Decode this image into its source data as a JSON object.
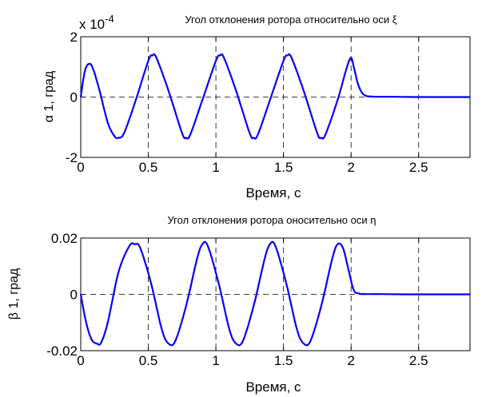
{
  "colors": {
    "series": "#0000ff",
    "axes": "#000000",
    "background": "#ffffff"
  },
  "chart_data": [
    {
      "type": "line",
      "title": "Угол отклонения ротора относительно оси ξ",
      "xlabel": "Время, с",
      "ylabel": "α 1, град",
      "exponent_label": "x 10",
      "exponent_power": "-4",
      "xlim": [
        0,
        2.88
      ],
      "ylim": [
        -2,
        2
      ],
      "xticks": [
        0,
        0.5,
        1,
        1.5,
        2,
        2.5
      ],
      "xtick_labels": [
        "0",
        "0.5",
        "1",
        "1.5",
        "2",
        "2.5"
      ],
      "yticks": [
        -2,
        0,
        2
      ],
      "ytick_labels": [
        "-2",
        "0",
        "2"
      ],
      "grid": true,
      "series": [
        {
          "x": [
            0,
            0.03,
            0.06,
            0.09,
            0.14,
            0.2,
            0.25,
            0.28,
            0.32,
            0.4,
            0.5,
            0.53,
            0.56,
            0.65,
            0.75,
            0.78,
            0.81,
            0.9,
            1.0,
            1.03,
            1.06,
            1.15,
            1.25,
            1.28,
            1.31,
            1.4,
            1.5,
            1.53,
            1.56,
            1.65,
            1.75,
            1.78,
            1.81,
            1.9,
            1.97,
            2.0,
            2.02,
            2.05,
            2.08,
            2.11,
            2.14,
            2.2,
            2.3,
            2.5,
            2.7,
            2.88
          ],
          "y": [
            0,
            0.85,
            1.1,
            0.95,
            0.2,
            -0.85,
            -1.3,
            -1.35,
            -1.2,
            -0.2,
            1.2,
            1.38,
            1.3,
            0.2,
            -1.2,
            -1.35,
            -1.25,
            -0.1,
            1.2,
            1.38,
            1.3,
            0.2,
            -1.2,
            -1.35,
            -1.25,
            -0.1,
            1.2,
            1.38,
            1.3,
            0.2,
            -1.2,
            -1.35,
            -1.25,
            -0.1,
            1.0,
            1.3,
            1.0,
            0.45,
            0.15,
            0.04,
            0.02,
            0.01,
            0.01,
            0.0,
            0.0,
            0.0
          ]
        }
      ]
    },
    {
      "type": "line",
      "title": "Угол отклонения ротора оносительно оси η",
      "xlabel": "Время, с",
      "ylabel": "β 1, град",
      "xlim": [
        0,
        2.88
      ],
      "ylim": [
        -0.02,
        0.02
      ],
      "xticks": [
        0,
        0.5,
        1,
        1.5,
        2,
        2.5
      ],
      "xtick_labels": [
        "0",
        "0.5",
        "1",
        "1.5",
        "2",
        "2.5"
      ],
      "yticks": [
        -0.02,
        0,
        0.02
      ],
      "ytick_labels": [
        "-0.02",
        "0",
        "0.02"
      ],
      "grid": true,
      "series": [
        {
          "x": [
            0,
            0.04,
            0.08,
            0.12,
            0.15,
            0.2,
            0.28,
            0.36,
            0.4,
            0.44,
            0.52,
            0.6,
            0.65,
            0.7,
            0.78,
            0.86,
            0.9,
            0.94,
            1.02,
            1.1,
            1.15,
            1.2,
            1.28,
            1.36,
            1.4,
            1.44,
            1.52,
            1.6,
            1.65,
            1.7,
            1.78,
            1.86,
            1.9,
            1.94,
            1.98,
            2.02,
            2.06,
            2.1,
            2.2,
            2.4,
            2.6,
            2.88
          ],
          "y": [
            0,
            -0.01,
            -0.016,
            -0.0175,
            -0.0172,
            -0.01,
            0.008,
            0.0172,
            0.0178,
            0.0165,
            0.004,
            -0.0125,
            -0.0175,
            -0.0165,
            -0.004,
            0.0125,
            0.0178,
            0.0172,
            0.004,
            -0.0125,
            -0.0175,
            -0.0165,
            -0.004,
            0.0125,
            0.0178,
            0.0172,
            0.004,
            -0.0125,
            -0.0175,
            -0.0165,
            -0.004,
            0.0125,
            0.0178,
            0.0165,
            0.009,
            0.0015,
            0.0003,
            0.0001,
            0.0001,
            0.0,
            0.0,
            0.0
          ]
        }
      ]
    }
  ]
}
